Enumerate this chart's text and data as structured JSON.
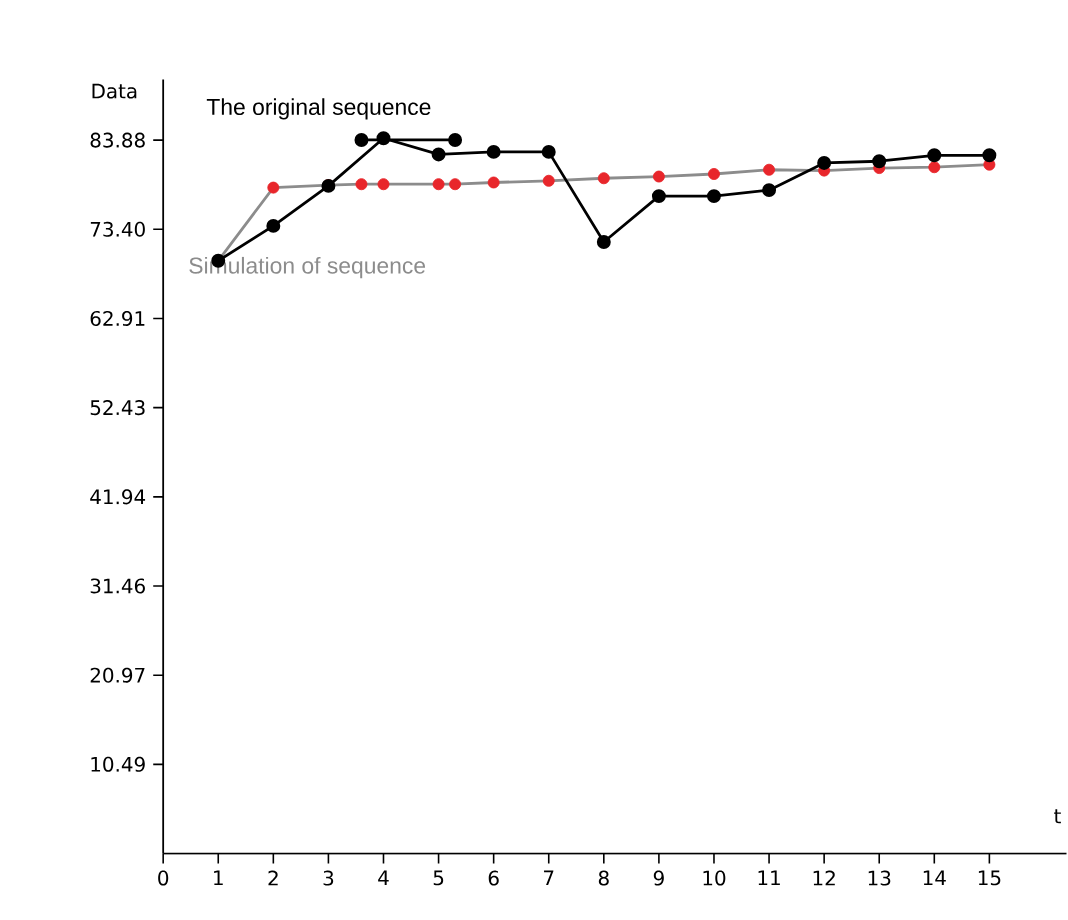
{
  "chart_data": {
    "type": "line",
    "xlabel": "t",
    "ylabel": "Data",
    "xlim": [
      0,
      16.4
    ],
    "ylim": [
      0,
      91
    ],
    "xticks": [
      0,
      1,
      2,
      3,
      4,
      5,
      6,
      7,
      8,
      9,
      10,
      11,
      12,
      13,
      14,
      15
    ],
    "yticks": [
      {
        "value": 10.49,
        "label": "10.49"
      },
      {
        "value": 20.97,
        "label": "20.97"
      },
      {
        "value": 31.46,
        "label": "31.46"
      },
      {
        "value": 41.94,
        "label": "41.94"
      },
      {
        "value": 52.43,
        "label": "52.43"
      },
      {
        "value": 62.91,
        "label": "62.91"
      },
      {
        "value": 73.4,
        "label": "73.40"
      },
      {
        "value": 83.88,
        "label": "83.88"
      }
    ],
    "grid": false,
    "legend": "top left",
    "marker": "circle",
    "line_style": "solid",
    "series": [
      {
        "name": "Simulation of sequence",
        "color": "#8c8c8c",
        "colors": [
          "#e8262b",
          "#e8262b",
          "#e8262b",
          "#e8262b",
          "#e8262b",
          "#e8262b",
          "#e8262b",
          "#e8262b",
          "#e8262b",
          "#e8262b",
          "#e8262b",
          "#e8262b",
          "#e8262b",
          "#e8262b",
          "#e8262b",
          "#e8262b",
          "#e8262b"
        ],
        "x": [
          1,
          2,
          3,
          3.6,
          4,
          5,
          5.3,
          6,
          7,
          8,
          9,
          10,
          11,
          12,
          13,
          14,
          15
        ],
        "values": [
          69.7,
          78.3,
          78.6,
          78.7,
          78.7,
          78.7,
          78.7,
          78.9,
          79.1,
          79.4,
          79.6,
          79.9,
          80.4,
          80.3,
          80.6,
          80.7,
          81.0
        ]
      },
      {
        "color": "#000000",
        "x": [
          3.6,
          5.3
        ],
        "values": [
          83.9,
          83.9
        ]
      },
      {
        "name": "The original sequence",
        "color": "#000000",
        "x": [
          1,
          2,
          3,
          4,
          5,
          6,
          7,
          8,
          9,
          10,
          11,
          12,
          13,
          14,
          15
        ],
        "values": [
          69.7,
          73.8,
          78.5,
          84.1,
          82.2,
          82.5,
          82.5,
          71.9,
          77.3,
          77.3,
          78.0,
          81.2,
          81.4,
          82.1,
          82.1
        ]
      }
    ]
  }
}
